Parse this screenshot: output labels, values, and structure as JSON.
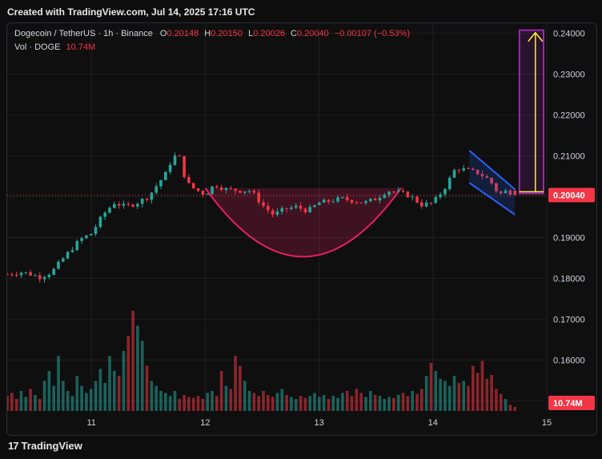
{
  "caption": "Created with TradingView.com, Jul 14, 2025 17:16 UTC",
  "legend": {
    "symbol": "Dogecoin / TetherUS · 1h · Binance",
    "open_label": "O",
    "open": "0.20148",
    "high_label": "H",
    "high": "0.20150",
    "low_label": "L",
    "low": "0.20026",
    "close_label": "C",
    "close": "0.20040",
    "change": "−0.00107 (−0.53%)",
    "volume_label": "Vol · DOGE",
    "volume": "10.74M"
  },
  "footer": {
    "brand": "TradingView",
    "logo_icon": "tradingview-logo-icon"
  },
  "colors": {
    "up": "#26a69a",
    "down": "#f23645",
    "cup": "#e91e63",
    "channel": "#2962ff",
    "target_box": "#9c27b0",
    "arrow": "#ffeb3b",
    "background": "#0f0f0f"
  },
  "chart_data": {
    "type": "candlestick",
    "symbol": "DOGEUSDT",
    "timeframe": "1h",
    "y_axis": {
      "ticks": [
        "0.24000",
        "0.23000",
        "0.22000",
        "0.21000",
        "0.20000",
        "0.19000",
        "0.18000",
        "0.17000",
        "0.16000",
        "0.15000"
      ],
      "ylim": [
        0.1475,
        0.2425
      ]
    },
    "x_axis": {
      "ticks": [
        "11",
        "12",
        "13",
        "14",
        "15"
      ],
      "xlim": [
        10.26,
        15.0
      ]
    },
    "last_price": "0.20040",
    "last_volume": "10.74M",
    "anchor_points": [
      {
        "x": 10.26,
        "y": 0.181
      },
      {
        "x": 10.4,
        "y": 0.1815
      },
      {
        "x": 10.55,
        "y": 0.1803
      },
      {
        "x": 10.65,
        "y": 0.1815
      },
      {
        "x": 10.75,
        "y": 0.1848
      },
      {
        "x": 10.82,
        "y": 0.187
      },
      {
        "x": 10.9,
        "y": 0.1895
      },
      {
        "x": 11.0,
        "y": 0.191
      },
      {
        "x": 11.1,
        "y": 0.1955
      },
      {
        "x": 11.2,
        "y": 0.1985
      },
      {
        "x": 11.3,
        "y": 0.1975
      },
      {
        "x": 11.4,
        "y": 0.1985
      },
      {
        "x": 11.5,
        "y": 0.2
      },
      {
        "x": 11.58,
        "y": 0.203
      },
      {
        "x": 11.65,
        "y": 0.2055
      },
      {
        "x": 11.72,
        "y": 0.21
      },
      {
        "x": 11.78,
        "y": 0.2095
      },
      {
        "x": 11.83,
        "y": 0.2035
      },
      {
        "x": 11.9,
        "y": 0.202
      },
      {
        "x": 12.0,
        "y": 0.2005
      },
      {
        "x": 12.08,
        "y": 0.203
      },
      {
        "x": 12.18,
        "y": 0.2018
      },
      {
        "x": 12.3,
        "y": 0.2015
      },
      {
        "x": 12.4,
        "y": 0.2015
      },
      {
        "x": 12.5,
        "y": 0.198
      },
      {
        "x": 12.6,
        "y": 0.1955
      },
      {
        "x": 12.7,
        "y": 0.197
      },
      {
        "x": 12.8,
        "y": 0.1975
      },
      {
        "x": 12.9,
        "y": 0.1965
      },
      {
        "x": 13.0,
        "y": 0.1985
      },
      {
        "x": 13.1,
        "y": 0.199
      },
      {
        "x": 13.2,
        "y": 0.1995
      },
      {
        "x": 13.3,
        "y": 0.199
      },
      {
        "x": 13.4,
        "y": 0.1985
      },
      {
        "x": 13.5,
        "y": 0.1995
      },
      {
        "x": 13.6,
        "y": 0.2015
      },
      {
        "x": 13.7,
        "y": 0.201
      },
      {
        "x": 13.8,
        "y": 0.2002
      },
      {
        "x": 13.9,
        "y": 0.198
      },
      {
        "x": 14.0,
        "y": 0.1985
      },
      {
        "x": 14.1,
        "y": 0.202
      },
      {
        "x": 14.2,
        "y": 0.207
      },
      {
        "x": 14.3,
        "y": 0.2065
      },
      {
        "x": 14.4,
        "y": 0.2058
      },
      {
        "x": 14.5,
        "y": 0.204
      },
      {
        "x": 14.58,
        "y": 0.2005
      },
      {
        "x": 14.65,
        "y": 0.2015
      },
      {
        "x": 14.72,
        "y": 0.2004
      }
    ],
    "candle_count": 110,
    "volume_heights": [
      0.15,
      0.18,
      0.12,
      0.2,
      0.14,
      0.22,
      0.16,
      0.12,
      0.3,
      0.4,
      0.25,
      0.55,
      0.3,
      0.2,
      0.15,
      0.35,
      0.25,
      0.18,
      0.22,
      0.3,
      0.42,
      0.28,
      0.55,
      0.4,
      0.35,
      0.6,
      0.75,
      1.0,
      0.85,
      0.7,
      0.45,
      0.3,
      0.25,
      0.2,
      0.18,
      0.15,
      0.2,
      0.12,
      0.16,
      0.14,
      0.13,
      0.15,
      0.12,
      0.18,
      0.2,
      0.15,
      0.4,
      0.25,
      0.22,
      0.55,
      0.45,
      0.3,
      0.2,
      0.18,
      0.15,
      0.2,
      0.16,
      0.14,
      0.18,
      0.22,
      0.16,
      0.14,
      0.12,
      0.15,
      0.13,
      0.15,
      0.18,
      0.14,
      0.16,
      0.12,
      0.15,
      0.13,
      0.18,
      0.2,
      0.15,
      0.22,
      0.18,
      0.14,
      0.2,
      0.16,
      0.15,
      0.12,
      0.14,
      0.13,
      0.16,
      0.18,
      0.15,
      0.2,
      0.17,
      0.22,
      0.35,
      0.48,
      0.4,
      0.32,
      0.3,
      0.25,
      0.35,
      0.28,
      0.3,
      0.25,
      0.45,
      0.38,
      0.5,
      0.32,
      0.36,
      0.22,
      0.17,
      0.12,
      0.06,
      0.04
    ],
    "annotations": {
      "cup": {
        "x0": 12.0,
        "x1": 13.72,
        "y_rim": 0.2021,
        "y_bottom": 0.1853
      },
      "channel": {
        "upper": [
          [
            14.32,
            0.2113
          ],
          [
            14.72,
            0.2018
          ]
        ],
        "lower": [
          [
            14.32,
            0.2034
          ],
          [
            14.72,
            0.1956
          ]
        ]
      },
      "target_box": {
        "x0": 14.76,
        "x1": 15.05,
        "y0": 0.2008,
        "y1": 0.2408
      },
      "target_arrow": {
        "x": 14.9,
        "y0": 0.2012,
        "y1": 0.2402
      }
    }
  }
}
